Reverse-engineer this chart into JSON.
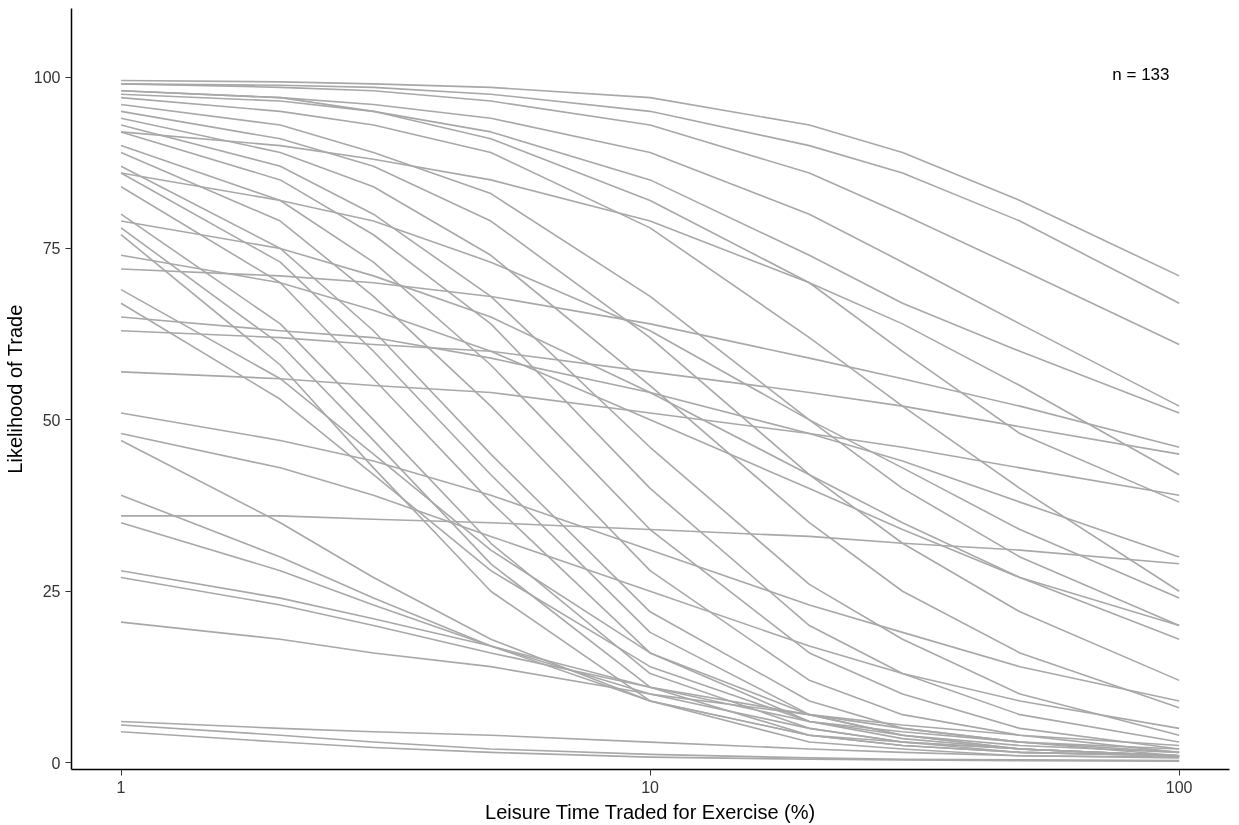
{
  "chart_data": {
    "type": "line",
    "xlabel": "Leisure Time Traded for Exercise (%)",
    "ylabel": "Likelihood of Trade",
    "annotations": [
      "n = 133"
    ],
    "log": "x",
    "grid": false,
    "color": "#a8a8a8",
    "xlim": [
      0.806,
      124.5
    ],
    "ylim": [
      -1,
      110
    ],
    "xticks": [
      1,
      10,
      100
    ],
    "yticks": [
      0,
      25,
      50,
      75,
      100
    ],
    "x": [
      1,
      2,
      3,
      5,
      10,
      20,
      30,
      50,
      100
    ],
    "series": [
      {
        "values": [
          99.5,
          99.3,
          99,
          98.5,
          97,
          93,
          89,
          82,
          71
        ]
      },
      {
        "values": [
          99,
          98.8,
          98.5,
          97.5,
          95,
          90,
          86,
          79,
          67
        ]
      },
      {
        "values": [
          99,
          98.5,
          98,
          96.5,
          93,
          86,
          80,
          72,
          61
        ]
      },
      {
        "values": [
          98,
          97,
          96,
          94,
          89,
          80,
          73,
          64,
          52
        ]
      },
      {
        "values": [
          97.5,
          96.5,
          95,
          92,
          85,
          74,
          67,
          60,
          51
        ]
      },
      {
        "values": [
          98,
          97,
          95,
          91,
          82,
          70,
          60,
          48,
          38
        ]
      },
      {
        "values": [
          97,
          95,
          93,
          89,
          78,
          62,
          52,
          40,
          25
        ]
      },
      {
        "values": [
          96,
          93,
          89,
          83,
          68,
          50,
          40,
          30,
          20
        ]
      },
      {
        "values": [
          95,
          91,
          87,
          79,
          62,
          42,
          32,
          22,
          12
        ]
      },
      {
        "values": [
          94,
          89,
          84,
          74,
          55,
          35,
          25,
          16,
          8
        ]
      },
      {
        "values": [
          93,
          87,
          80,
          68,
          46,
          26,
          18,
          10,
          4
        ]
      },
      {
        "values": [
          92,
          85,
          77,
          64,
          40,
          20,
          13,
          7,
          3
        ]
      },
      {
        "values": [
          90,
          82,
          73,
          58,
          34,
          16,
          10,
          5,
          2
        ]
      },
      {
        "values": [
          89,
          79,
          68,
          52,
          28,
          12,
          7,
          4,
          1.5
        ]
      },
      {
        "values": [
          87,
          75,
          63,
          45,
          22,
          9,
          5,
          3,
          1
        ]
      },
      {
        "values": [
          86,
          73,
          60,
          42,
          19,
          7,
          4,
          2,
          1
        ]
      },
      {
        "values": [
          84,
          70,
          56,
          38,
          16,
          6,
          3.5,
          2,
          1
        ]
      },
      {
        "values": [
          80,
          64,
          50,
          32,
          13,
          5,
          3,
          1.5,
          1
        ]
      },
      {
        "values": [
          78,
          61,
          47,
          29,
          11,
          4,
          2.5,
          1.5,
          1
        ]
      },
      {
        "values": [
          77,
          58,
          43,
          25,
          9,
          3,
          2,
          1,
          0.8
        ]
      },
      {
        "values": [
          74,
          70,
          66,
          60,
          50,
          40,
          34,
          27,
          20
        ]
      },
      {
        "values": [
          72,
          71,
          70,
          68,
          64,
          59,
          56,
          52,
          46
        ]
      },
      {
        "values": [
          69,
          56,
          45,
          31,
          16,
          7,
          4,
          2.5,
          1.5
        ]
      },
      {
        "values": [
          67,
          53,
          42,
          28,
          14,
          6,
          4,
          2,
          1
        ]
      },
      {
        "values": [
          65,
          63,
          62,
          59,
          54,
          48,
          44,
          38,
          30
        ]
      },
      {
        "values": [
          63,
          62,
          61,
          60,
          57,
          54,
          52,
          49,
          45
        ]
      },
      {
        "values": [
          57,
          56,
          55,
          54,
          51,
          48,
          46,
          43,
          39
        ]
      },
      {
        "values": [
          51,
          47,
          44,
          39,
          31,
          23,
          19,
          14,
          9
        ]
      },
      {
        "values": [
          48,
          43,
          39,
          33,
          25,
          17,
          13,
          9,
          5
        ]
      },
      {
        "values": [
          47,
          35,
          27,
          18,
          9,
          4,
          2.5,
          1.5,
          1
        ]
      },
      {
        "values": [
          39,
          30,
          24,
          17,
          9,
          4,
          3,
          2,
          1
        ]
      },
      {
        "values": [
          36,
          36,
          35.5,
          35,
          34,
          33,
          32,
          31,
          29
        ]
      },
      {
        "values": [
          35,
          28,
          23,
          17,
          10,
          5,
          3,
          2,
          1
        ]
      },
      {
        "values": [
          28,
          24,
          21,
          17,
          11,
          7,
          5,
          3,
          2
        ]
      },
      {
        "values": [
          27,
          23,
          20,
          16,
          11,
          6,
          4.5,
          3,
          1.5
        ]
      },
      {
        "values": [
          20.5,
          18,
          16,
          14,
          10,
          7,
          5.5,
          4,
          2.5
        ]
      },
      {
        "values": [
          6,
          5,
          4.5,
          4,
          3,
          2,
          1.5,
          1,
          0.7
        ]
      },
      {
        "values": [
          5.5,
          4,
          3,
          2,
          1.2,
          0.7,
          0.5,
          0.4,
          0.3
        ]
      },
      {
        "values": [
          4.5,
          3,
          2.2,
          1.5,
          0.8,
          0.5,
          0.4,
          0.3,
          0.2
        ]
      },
      {
        "values": [
          92,
          90,
          88,
          85,
          79,
          70,
          64,
          55,
          42
        ]
      },
      {
        "values": [
          86,
          82,
          79,
          73,
          63,
          50,
          43,
          34,
          24
        ]
      },
      {
        "values": [
          79,
          75,
          71,
          65,
          54,
          42,
          35,
          27,
          18
        ]
      }
    ]
  }
}
